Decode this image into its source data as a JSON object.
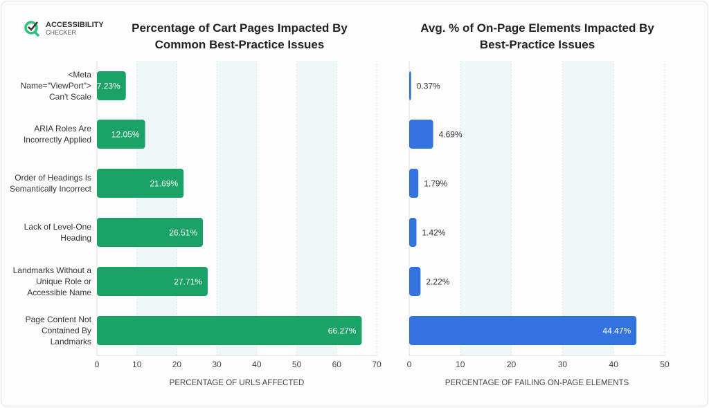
{
  "logo": {
    "line1": "ACCESSIBILITY",
    "line2": "CHECKER"
  },
  "colors": {
    "left_bar": "#1ba267",
    "right_bar": "#3373de",
    "band": "#eef8f6"
  },
  "chart_data": [
    {
      "type": "bar",
      "orientation": "horizontal",
      "title": [
        "Percentage of Cart Pages Impacted By",
        "Common Best-Practice Issues"
      ],
      "categories": [
        [
          "<Meta",
          "Name=\"ViewPort\">",
          "Can't Scale"
        ],
        [
          "ARIA Roles Are",
          "Incorrectly Applied"
        ],
        [
          "Order of Headings Is",
          "Semantically Incorrect"
        ],
        [
          "Lack of Level-One",
          "Heading"
        ],
        [
          "Landmarks Without a",
          "Unique Role or",
          "Accessible Name"
        ],
        [
          "Page Content Not",
          "Contained By",
          "Landmarks"
        ]
      ],
      "values": [
        7.23,
        12.05,
        21.69,
        26.51,
        27.71,
        66.27
      ],
      "labels": [
        "7.23%",
        "12.05%",
        "21.69%",
        "26.51%",
        "27.71%",
        "66.27%"
      ],
      "xlabel": "PERCENTAGE OF URLS AFFECTED",
      "xlim": [
        0,
        70
      ],
      "ticks": [
        "0",
        "10",
        "20",
        "30",
        "40",
        "50",
        "60",
        "70"
      ],
      "label_position": "inside"
    },
    {
      "type": "bar",
      "orientation": "horizontal",
      "title": [
        "Avg. % of On-Page Elements Impacted By",
        "Best-Practice Issues"
      ],
      "values": [
        0.37,
        4.69,
        1.79,
        1.42,
        2.22,
        44.47
      ],
      "labels": [
        "0.37%",
        "4.69%",
        "1.79%",
        "1.42%",
        "2.22%",
        "44.47%"
      ],
      "xlabel": "PERCENTAGE OF FAILING ON-PAGE ELEMENTS",
      "xlim": [
        0,
        50
      ],
      "ticks": [
        "0",
        "10",
        "20",
        "30",
        "40",
        "50"
      ],
      "label_position": "outside"
    }
  ]
}
